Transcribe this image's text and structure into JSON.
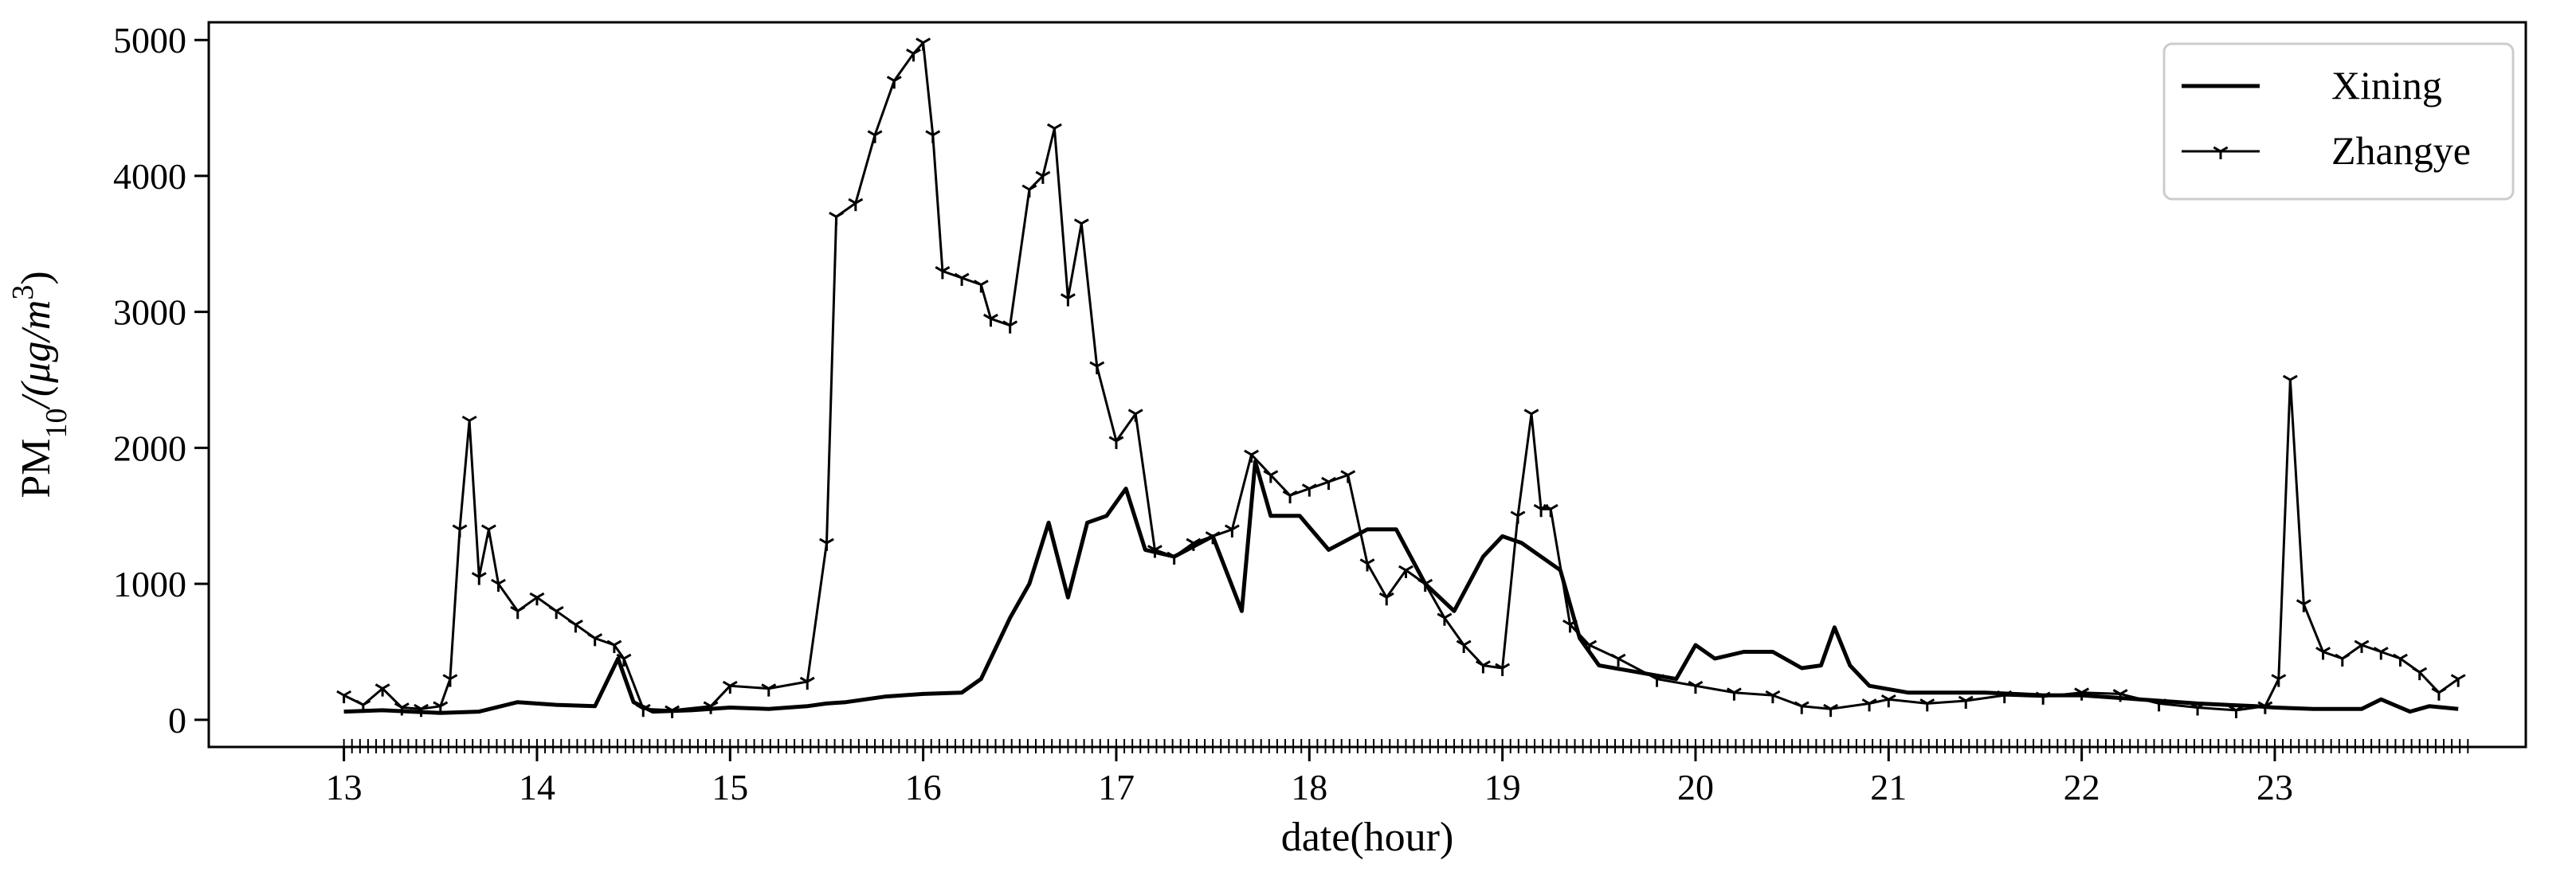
{
  "chart_data": {
    "type": "line",
    "xlabel": "date(hour)",
    "ylabel": "PM",
    "ylabel_sub": "10",
    "ylabel_unit": "/(μg/m",
    "ylabel_sup": "3",
    "ylabel_close": ")",
    "xlim": [
      12.3,
      24.3
    ],
    "ylim": [
      -200,
      5130
    ],
    "x_ticks": [
      13,
      14,
      15,
      16,
      17,
      18,
      19,
      20,
      21,
      22,
      23
    ],
    "x_tick_labels": [
      "13",
      "14",
      "15",
      "16",
      "17",
      "18",
      "19",
      "20",
      "21",
      "22",
      "23"
    ],
    "y_ticks": [
      0,
      1000,
      2000,
      3000,
      4000,
      5000
    ],
    "y_tick_labels": [
      "0",
      "1000",
      "2000",
      "3000",
      "4000",
      "5000"
    ],
    "grid": false,
    "legend_position": "top-right",
    "series": [
      {
        "name": "Xining",
        "style": "solid-thick",
        "x": [
          13.0,
          13.2,
          13.5,
          13.7,
          13.9,
          14.1,
          14.3,
          14.42,
          14.5,
          14.6,
          14.8,
          15.0,
          15.2,
          15.4,
          15.5,
          15.6,
          15.8,
          16.0,
          16.2,
          16.3,
          16.45,
          16.55,
          16.65,
          16.75,
          16.85,
          16.95,
          17.05,
          17.15,
          17.3,
          17.5,
          17.65,
          17.72,
          17.8,
          17.95,
          18.1,
          18.3,
          18.45,
          18.6,
          18.75,
          18.9,
          19.0,
          19.1,
          19.2,
          19.3,
          19.4,
          19.5,
          19.7,
          19.9,
          20.0,
          20.1,
          20.25,
          20.4,
          20.55,
          20.65,
          20.72,
          20.8,
          20.9,
          21.1,
          21.3,
          21.5,
          21.8,
          22.0,
          22.3,
          22.6,
          22.9,
          23.0,
          23.2,
          23.45,
          23.55,
          23.7,
          23.8,
          23.95
        ],
        "y": [
          60,
          70,
          50,
          60,
          130,
          110,
          100,
          450,
          130,
          60,
          70,
          90,
          80,
          100,
          120,
          130,
          170,
          190,
          200,
          300,
          750,
          1000,
          1450,
          900,
          1450,
          1500,
          1700,
          1250,
          1200,
          1350,
          800,
          1900,
          1500,
          1500,
          1250,
          1400,
          1400,
          1000,
          800,
          1200,
          1350,
          1300,
          1200,
          1100,
          600,
          400,
          350,
          300,
          550,
          450,
          500,
          500,
          380,
          400,
          680,
          400,
          250,
          200,
          200,
          200,
          180,
          180,
          150,
          120,
          100,
          90,
          80,
          80,
          150,
          60,
          100,
          80
        ]
      },
      {
        "name": "Zhangye",
        "style": "line-with-tri-down-markers",
        "x": [
          13.0,
          13.1,
          13.2,
          13.3,
          13.4,
          13.5,
          13.55,
          13.6,
          13.65,
          13.7,
          13.75,
          13.8,
          13.9,
          14.0,
          14.1,
          14.2,
          14.3,
          14.4,
          14.45,
          14.55,
          14.7,
          14.9,
          15.0,
          15.2,
          15.4,
          15.5,
          15.55,
          15.65,
          15.75,
          15.85,
          15.95,
          16.0,
          16.05,
          16.1,
          16.2,
          16.3,
          16.35,
          16.45,
          16.55,
          16.62,
          16.68,
          16.75,
          16.82,
          16.9,
          17.0,
          17.1,
          17.2,
          17.3,
          17.4,
          17.5,
          17.6,
          17.7,
          17.8,
          17.9,
          18.0,
          18.1,
          18.2,
          18.3,
          18.4,
          18.5,
          18.6,
          18.7,
          18.8,
          18.9,
          19.0,
          19.08,
          19.15,
          19.2,
          19.25,
          19.35,
          19.45,
          19.6,
          19.8,
          20.0,
          20.2,
          20.4,
          20.55,
          20.7,
          20.9,
          21.0,
          21.2,
          21.4,
          21.6,
          21.8,
          22.0,
          22.2,
          22.4,
          22.6,
          22.8,
          22.95,
          23.02,
          23.08,
          23.15,
          23.25,
          23.35,
          23.45,
          23.55,
          23.65,
          23.75,
          23.85,
          23.95
        ],
        "y": [
          180,
          110,
          230,
          90,
          80,
          100,
          300,
          1400,
          2200,
          1050,
          1400,
          1000,
          800,
          900,
          800,
          700,
          600,
          550,
          450,
          80,
          70,
          100,
          250,
          230,
          280,
          1300,
          3700,
          3800,
          4300,
          4700,
          4900,
          4980,
          4300,
          3300,
          3250,
          3200,
          2950,
          2900,
          3900,
          4000,
          4350,
          3100,
          3650,
          2600,
          2050,
          2250,
          1250,
          1200,
          1300,
          1350,
          1400,
          1950,
          1800,
          1650,
          1700,
          1750,
          1800,
          1150,
          900,
          1100,
          1000,
          750,
          550,
          400,
          380,
          1500,
          2250,
          1550,
          1550,
          700,
          550,
          450,
          300,
          250,
          200,
          180,
          100,
          80,
          120,
          150,
          120,
          140,
          180,
          170,
          200,
          190,
          120,
          90,
          70,
          100,
          300,
          2500,
          850,
          500,
          450,
          550,
          500,
          450,
          350,
          200,
          300
        ]
      }
    ]
  }
}
